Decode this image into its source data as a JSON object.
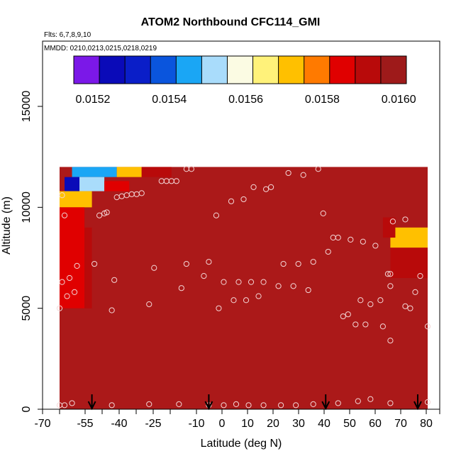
{
  "chart_data": {
    "type": "heatmap",
    "title": "ATOM2 Northbound CFC114_GMI",
    "flights_note": "Flts: 6,7,8,9,10",
    "dates_note": "MMDD: 0210,0213,0215,0218,0219",
    "xlabel": "Latitude (deg N)",
    "ylabel": "Altitude (m)",
    "xlim": [
      -70,
      85
    ],
    "ylim": [
      0,
      18000
    ],
    "x_ticks": [
      -70,
      -55,
      -40,
      -25,
      -10,
      0,
      10,
      20,
      30,
      40,
      50,
      60,
      70,
      80
    ],
    "x_tick_labels": [
      "-70",
      "-55",
      "-40",
      "-25",
      "-10",
      "0",
      "10",
      "20",
      "30",
      "40",
      "50",
      "60",
      "70",
      "80"
    ],
    "y_ticks": [
      0,
      5000,
      10000,
      15000
    ],
    "y_tick_labels": [
      "0",
      "5000",
      "10000",
      "15000"
    ],
    "colorbar": {
      "range": [
        0.01515,
        0.01602
      ],
      "tick_values": [
        0.0152,
        0.0154,
        0.0156,
        0.0158,
        0.016
      ],
      "tick_labels": [
        "0.0152",
        "0.0154",
        "0.0156",
        "0.0158",
        "0.0160"
      ],
      "colors": [
        "#7b18e8",
        "#0a0ab8",
        "#0a1ec8",
        "#0a55dd",
        "#1aa6f5",
        "#a9dcfb",
        "#fbfbe3",
        "#fff27a",
        "#ffc000",
        "#ff7a00",
        "#e00000",
        "#b80a0a",
        "#9e1a1a"
      ]
    },
    "background_color": "#ab1919",
    "field_regions": [
      {
        "lat": [
          -68,
          80
        ],
        "alt": [
          0,
          12000
        ],
        "value": 0.01601
      },
      {
        "lat": [
          -63,
          -45
        ],
        "alt": [
          11500,
          12000
        ],
        "value": 0.01546
      },
      {
        "lat": [
          -45,
          -35
        ],
        "alt": [
          11500,
          12000
        ],
        "value": 0.01572
      },
      {
        "lat": [
          -35,
          -23
        ],
        "alt": [
          11500,
          12000
        ],
        "value": 0.01592
      },
      {
        "lat": [
          -66,
          -60
        ],
        "alt": [
          10800,
          11500
        ],
        "value": 0.01522
      },
      {
        "lat": [
          -60,
          -50
        ],
        "alt": [
          10800,
          11500
        ],
        "value": 0.01551
      },
      {
        "lat": [
          -50,
          -40
        ],
        "alt": [
          10800,
          11300
        ],
        "value": 0.01583
      },
      {
        "lat": [
          -68,
          -55
        ],
        "alt": [
          10000,
          10800
        ],
        "value": 0.01573
      },
      {
        "lat": [
          -68,
          -58
        ],
        "alt": [
          5000,
          10000
        ],
        "value": 0.01586
      },
      {
        "lat": [
          -58,
          -55
        ],
        "alt": [
          5000,
          9000
        ],
        "value": 0.01594
      },
      {
        "lat": [
          65,
          80
        ],
        "alt": [
          8000,
          9000
        ],
        "value": 0.01574
      },
      {
        "lat": [
          65,
          80
        ],
        "alt": [
          6500,
          8000
        ],
        "value": 0.01589
      },
      {
        "lat": [
          62,
          67
        ],
        "alt": [
          8500,
          9500
        ],
        "value": 0.01593
      }
    ],
    "arrows_lat": [
      -55,
      -8,
      39,
      76
    ],
    "sample_points": [
      {
        "lat": -67,
        "alt": 10600
      },
      {
        "lat": -66,
        "alt": 9600
      },
      {
        "lat": -68,
        "alt": 5000
      },
      {
        "lat": -67,
        "alt": 6300
      },
      {
        "lat": -65,
        "alt": 5600
      },
      {
        "lat": -64,
        "alt": 6500
      },
      {
        "lat": -62,
        "alt": 5800
      },
      {
        "lat": -61,
        "alt": 7100
      },
      {
        "lat": -54,
        "alt": 7200
      },
      {
        "lat": -52,
        "alt": 9600
      },
      {
        "lat": -50,
        "alt": 9700
      },
      {
        "lat": -49,
        "alt": 9750
      },
      {
        "lat": -45,
        "alt": 10500
      },
      {
        "lat": -43,
        "alt": 10550
      },
      {
        "lat": -41,
        "alt": 10600
      },
      {
        "lat": -39,
        "alt": 10650
      },
      {
        "lat": -37,
        "alt": 10650
      },
      {
        "lat": -35,
        "alt": 10700
      },
      {
        "lat": -47,
        "alt": 4900
      },
      {
        "lat": -46,
        "alt": 6400
      },
      {
        "lat": -32,
        "alt": 5200
      },
      {
        "lat": -30,
        "alt": 7000
      },
      {
        "lat": -27,
        "alt": 11300
      },
      {
        "lat": -25,
        "alt": 11300
      },
      {
        "lat": -23,
        "alt": 11300
      },
      {
        "lat": -21,
        "alt": 11300
      },
      {
        "lat": -17,
        "alt": 11900
      },
      {
        "lat": -15,
        "alt": 11900
      },
      {
        "lat": -19,
        "alt": 6000
      },
      {
        "lat": -17,
        "alt": 7200
      },
      {
        "lat": -10,
        "alt": 6600
      },
      {
        "lat": -8,
        "alt": 7300
      },
      {
        "lat": -5,
        "alt": 9600
      },
      {
        "lat": -4,
        "alt": 5000
      },
      {
        "lat": -2,
        "alt": 6300
      },
      {
        "lat": 1,
        "alt": 10300
      },
      {
        "lat": 2,
        "alt": 5400
      },
      {
        "lat": 4,
        "alt": 6300
      },
      {
        "lat": 6,
        "alt": 10400
      },
      {
        "lat": 7,
        "alt": 5400
      },
      {
        "lat": 9,
        "alt": 6300
      },
      {
        "lat": 10,
        "alt": 11000
      },
      {
        "lat": 12,
        "alt": 5600
      },
      {
        "lat": 14,
        "alt": 6300
      },
      {
        "lat": 15,
        "alt": 10900
      },
      {
        "lat": 17,
        "alt": 11000
      },
      {
        "lat": 20,
        "alt": 6100
      },
      {
        "lat": 22,
        "alt": 7200
      },
      {
        "lat": 24,
        "alt": 11700
      },
      {
        "lat": 26,
        "alt": 6100
      },
      {
        "lat": 28,
        "alt": 7200
      },
      {
        "lat": 30,
        "alt": 11600
      },
      {
        "lat": 32,
        "alt": 5900
      },
      {
        "lat": 34,
        "alt": 7300
      },
      {
        "lat": 36,
        "alt": 11900
      },
      {
        "lat": 38,
        "alt": 9700
      },
      {
        "lat": 40,
        "alt": 7800
      },
      {
        "lat": 42,
        "alt": 8500
      },
      {
        "lat": 44,
        "alt": 8500
      },
      {
        "lat": 46,
        "alt": 4600
      },
      {
        "lat": 48,
        "alt": 4700
      },
      {
        "lat": 49,
        "alt": 8400
      },
      {
        "lat": 51,
        "alt": 4200
      },
      {
        "lat": 53,
        "alt": 5400
      },
      {
        "lat": 54,
        "alt": 8300
      },
      {
        "lat": 55,
        "alt": 4200
      },
      {
        "lat": 57,
        "alt": 5200
      },
      {
        "lat": 59,
        "alt": 8100
      },
      {
        "lat": 61,
        "alt": 5400
      },
      {
        "lat": 62,
        "alt": 4100
      },
      {
        "lat": 64,
        "alt": 6700
      },
      {
        "lat": 65,
        "alt": 6700
      },
      {
        "lat": 65,
        "alt": 6100
      },
      {
        "lat": 65,
        "alt": 3400
      },
      {
        "lat": 66,
        "alt": 9300
      },
      {
        "lat": 71,
        "alt": 9400
      },
      {
        "lat": 71,
        "alt": 5100
      },
      {
        "lat": 73,
        "alt": 5000
      },
      {
        "lat": 75,
        "alt": 5800
      },
      {
        "lat": 77,
        "alt": 6600
      },
      {
        "lat": 80,
        "alt": 4100
      },
      {
        "lat": -68,
        "alt": 200
      },
      {
        "lat": -66,
        "alt": 200
      },
      {
        "lat": -63,
        "alt": 300
      },
      {
        "lat": -47,
        "alt": 200
      },
      {
        "lat": -32,
        "alt": 250
      },
      {
        "lat": -20,
        "alt": 250
      },
      {
        "lat": -8,
        "alt": 200
      },
      {
        "lat": -2,
        "alt": 200
      },
      {
        "lat": 3,
        "alt": 250
      },
      {
        "lat": 8,
        "alt": 200
      },
      {
        "lat": 14,
        "alt": 200
      },
      {
        "lat": 21,
        "alt": 200
      },
      {
        "lat": 27,
        "alt": 200
      },
      {
        "lat": 34,
        "alt": 250
      },
      {
        "lat": 44,
        "alt": 300
      },
      {
        "lat": 52,
        "alt": 400
      },
      {
        "lat": 57,
        "alt": 500
      },
      {
        "lat": 65,
        "alt": 300
      },
      {
        "lat": 80,
        "alt": 350
      }
    ]
  }
}
